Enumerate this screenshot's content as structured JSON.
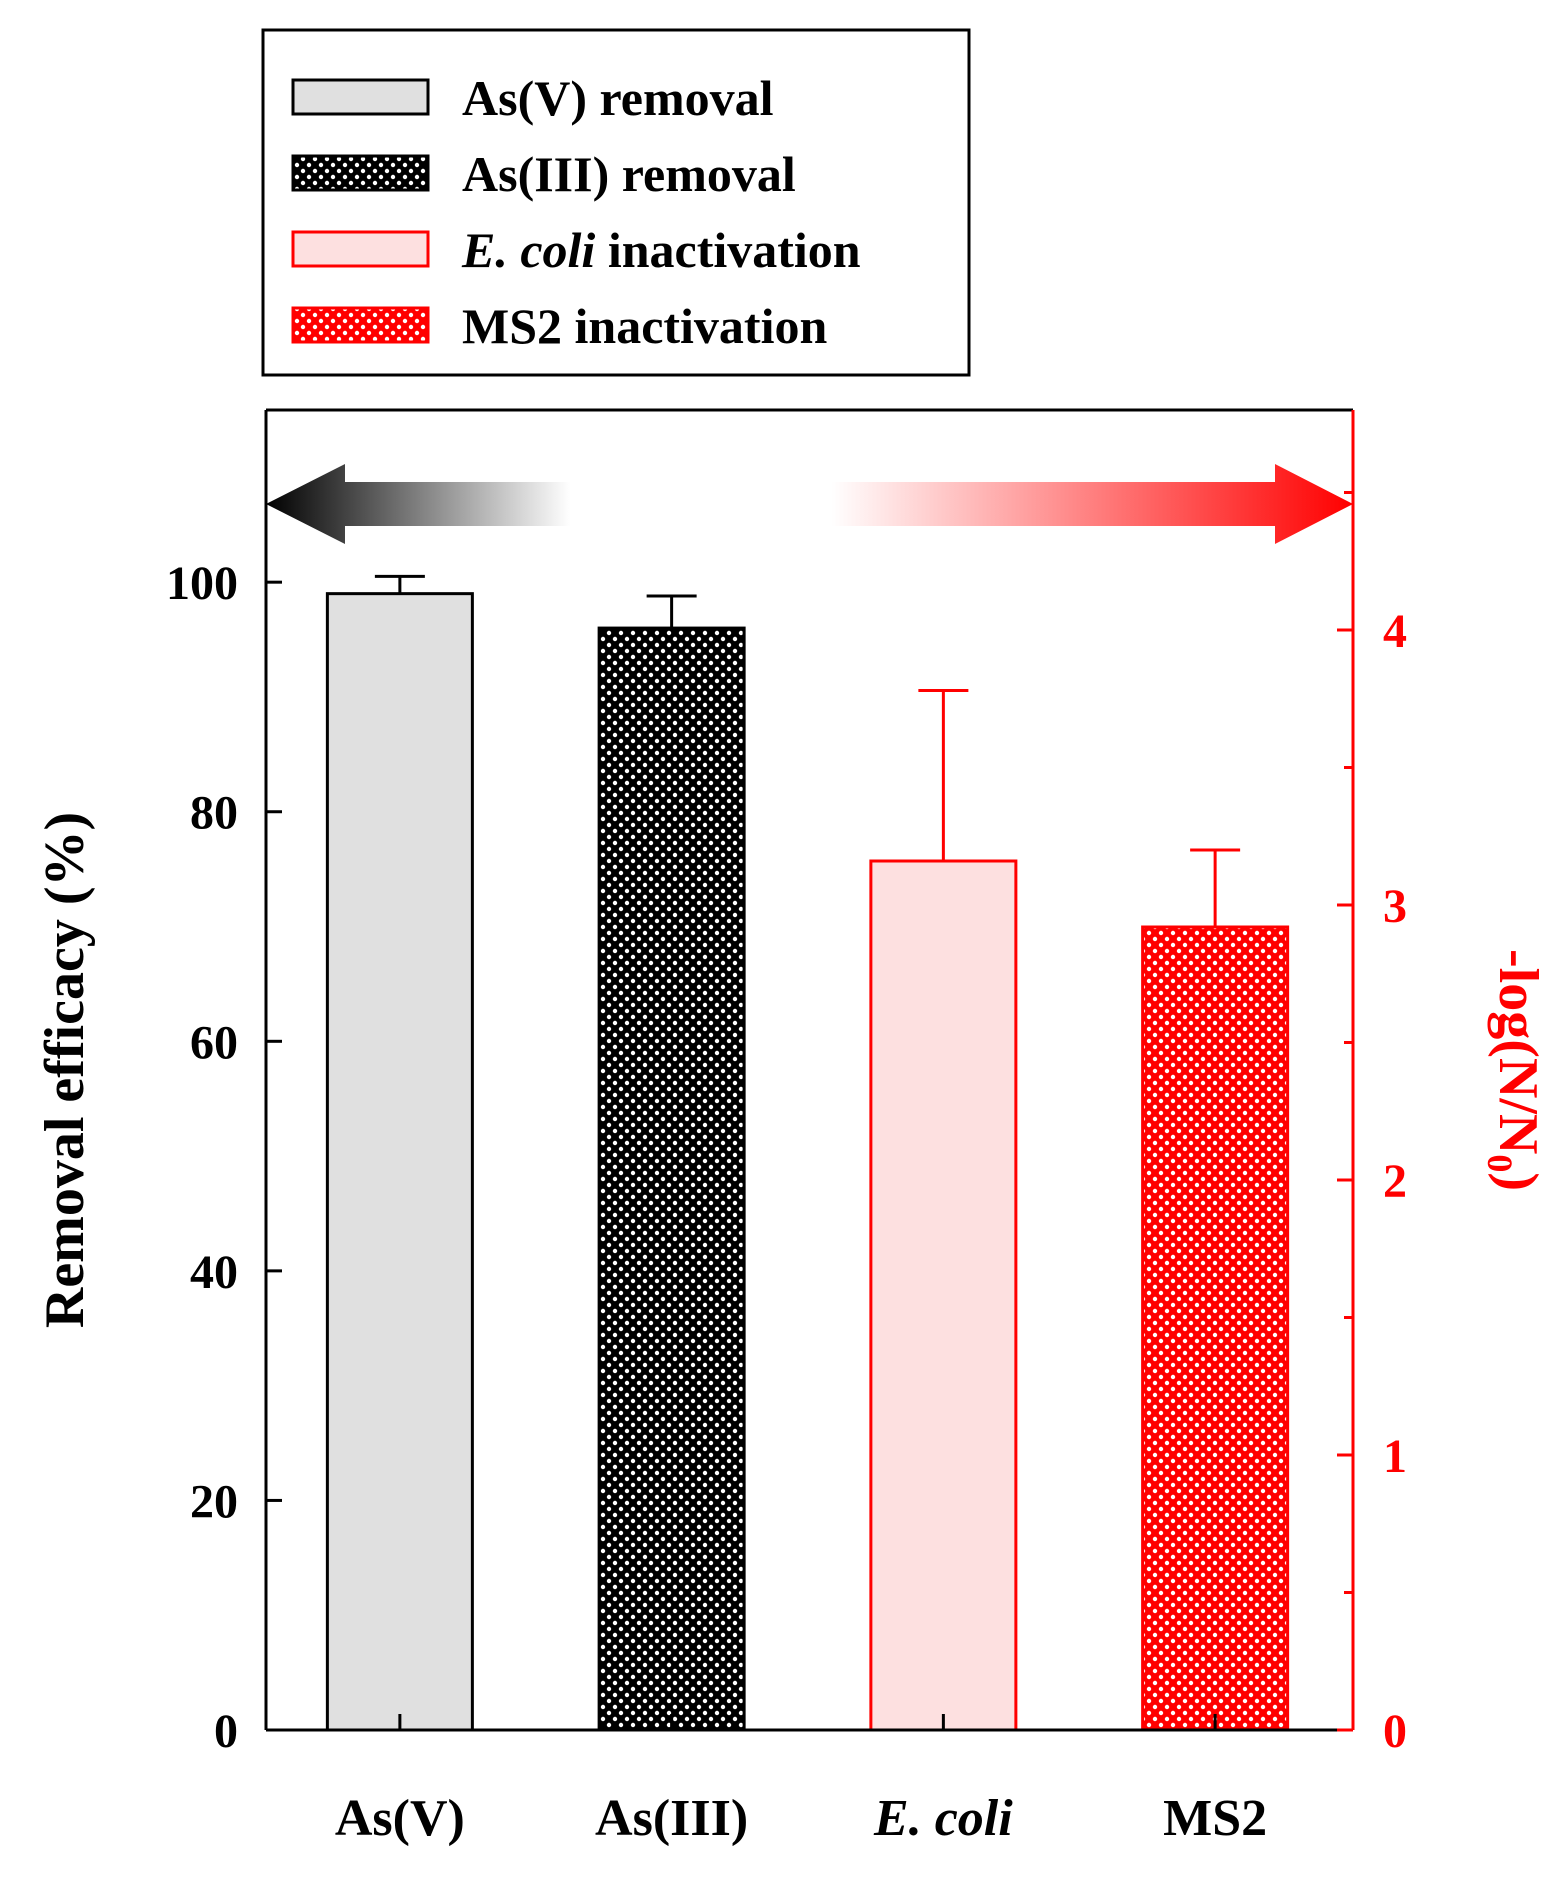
{
  "chart_data": {
    "type": "bar",
    "categories": [
      {
        "pre": "As(V)",
        "em": "",
        "post": ""
      },
      {
        "pre": "As(III)",
        "em": "",
        "post": ""
      },
      {
        "pre": "",
        "em": "E. coli",
        "post": ""
      },
      {
        "pre": "MS2",
        "em": "",
        "post": ""
      }
    ],
    "legend": [
      {
        "pre": "",
        "em": "",
        "post": "As(V) removal",
        "fill": "#e0e0e0",
        "stroke": "#000000",
        "pattern": "none"
      },
      {
        "pre": "",
        "em": "",
        "post": "As(III) removal",
        "fill": "#000000",
        "stroke": "#000000",
        "pattern": "dots-dark"
      },
      {
        "pre": "",
        "em": "E. coli",
        "post": " inactivation",
        "fill": "#fde0e0",
        "stroke": "#ff0000",
        "pattern": "none"
      },
      {
        "pre": "",
        "em": "",
        "post": "MS2 inactivation",
        "fill": "#ff0000",
        "stroke": "#ff0000",
        "pattern": "dots-red"
      }
    ],
    "series": [
      {
        "axis": "left",
        "values": [
          99.0,
          96.0,
          null,
          null
        ],
        "errors": [
          1.5,
          2.8,
          null,
          null
        ]
      },
      {
        "axis": "right",
        "values": [
          null,
          null,
          3.16,
          2.92
        ],
        "errors": [
          null,
          null,
          0.62,
          0.28
        ]
      }
    ],
    "bars": [
      {
        "axis": "left",
        "value": 99.0,
        "error": 1.5,
        "fill": "#e0e0e0",
        "stroke": "#000000",
        "pattern": "none"
      },
      {
        "axis": "left",
        "value": 96.0,
        "error": 2.8,
        "fill": "#000000",
        "stroke": "#000000",
        "pattern": "dots-dark"
      },
      {
        "axis": "right",
        "value": 3.16,
        "error": 0.62,
        "fill": "#fde0e0",
        "stroke": "#ff0000",
        "pattern": "none"
      },
      {
        "axis": "right",
        "value": 2.92,
        "error": 0.28,
        "fill": "#ff0000",
        "stroke": "#ff0000",
        "pattern": "dots-red"
      }
    ],
    "y_left": {
      "label": "Removal efficacy (%)",
      "min": 0,
      "max": 115,
      "ticks": [
        0,
        20,
        40,
        60,
        80,
        100
      ],
      "color": "#000000"
    },
    "y_right": {
      "label_base": "-log(N/N",
      "label_sub": "0",
      "label_end": ")",
      "min": 0,
      "max": 4.8,
      "ticks": [
        0,
        1,
        2,
        3,
        4
      ],
      "color": "#ff0000"
    },
    "grid": false,
    "legend_position": "above-plot",
    "annotation": "double-headed gradient arrow (black to red) spanning plot width"
  }
}
